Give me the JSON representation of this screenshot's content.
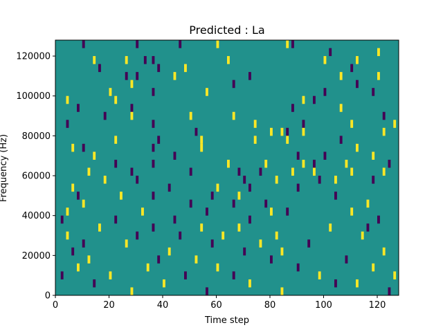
{
  "chart_data": {
    "type": "heatmap",
    "title": "Predicted : La",
    "xlabel": "Time step",
    "ylabel": "Frequency (Hz)",
    "xlim": [
      0,
      128
    ],
    "ylim": [
      0,
      128000
    ],
    "x_ticks": [
      0,
      20,
      40,
      60,
      80,
      100,
      120
    ],
    "y_ticks": [
      0,
      20000,
      40000,
      60000,
      80000,
      100000,
      120000
    ],
    "grid": false,
    "legend": "none",
    "colors": {
      "background": "#21918c",
      "positive": "#fde725",
      "negative": "#440154"
    },
    "cell_height_hz": 4000,
    "cells": [
      {
        "t": 10,
        "f": 124000,
        "v": "neg"
      },
      {
        "t": 30,
        "f": 124000,
        "v": "neg"
      },
      {
        "t": 46,
        "f": 124000,
        "v": "neg"
      },
      {
        "t": 60,
        "f": 124000,
        "v": "pos"
      },
      {
        "t": 86,
        "f": 124000,
        "v": "pos"
      },
      {
        "t": 88,
        "f": 124000,
        "v": "neg"
      },
      {
        "t": 102,
        "f": 120000,
        "v": "neg"
      },
      {
        "t": 120,
        "f": 120000,
        "v": "pos"
      },
      {
        "t": 14,
        "f": 116000,
        "v": "pos"
      },
      {
        "t": 26,
        "f": 116000,
        "v": "pos"
      },
      {
        "t": 33,
        "f": 116000,
        "v": "neg"
      },
      {
        "t": 36,
        "f": 116000,
        "v": "neg"
      },
      {
        "t": 64,
        "f": 116000,
        "v": "pos"
      },
      {
        "t": 100,
        "f": 116000,
        "v": "pos"
      },
      {
        "t": 112,
        "f": 116000,
        "v": "pos"
      },
      {
        "t": 16,
        "f": 112000,
        "v": "neg"
      },
      {
        "t": 38,
        "f": 112000,
        "v": "neg"
      },
      {
        "t": 48,
        "f": 112000,
        "v": "pos"
      },
      {
        "t": 110,
        "f": 112000,
        "v": "neg"
      },
      {
        "t": 26,
        "f": 108000,
        "v": "neg"
      },
      {
        "t": 30,
        "f": 108000,
        "v": "neg"
      },
      {
        "t": 44,
        "f": 108000,
        "v": "pos"
      },
      {
        "t": 72,
        "f": 108000,
        "v": "neg"
      },
      {
        "t": 106,
        "f": 108000,
        "v": "pos"
      },
      {
        "t": 120,
        "f": 108000,
        "v": "pos"
      },
      {
        "t": 28,
        "f": 104000,
        "v": "pos"
      },
      {
        "t": 66,
        "f": 104000,
        "v": "neg"
      },
      {
        "t": 112,
        "f": 104000,
        "v": "neg"
      },
      {
        "t": 20,
        "f": 100000,
        "v": "pos"
      },
      {
        "t": 36,
        "f": 100000,
        "v": "neg"
      },
      {
        "t": 56,
        "f": 100000,
        "v": "pos"
      },
      {
        "t": 100,
        "f": 100000,
        "v": "neg"
      },
      {
        "t": 118,
        "f": 100000,
        "v": "neg"
      },
      {
        "t": 4,
        "f": 96000,
        "v": "pos"
      },
      {
        "t": 22,
        "f": 96000,
        "v": "pos"
      },
      {
        "t": 92,
        "f": 96000,
        "v": "pos"
      },
      {
        "t": 96,
        "f": 96000,
        "v": "neg"
      },
      {
        "t": 8,
        "f": 92000,
        "v": "neg"
      },
      {
        "t": 28,
        "f": 92000,
        "v": "neg"
      },
      {
        "t": 88,
        "f": 92000,
        "v": "neg"
      },
      {
        "t": 106,
        "f": 92000,
        "v": "pos"
      },
      {
        "t": 18,
        "f": 88000,
        "v": "neg"
      },
      {
        "t": 28,
        "f": 88000,
        "v": "pos"
      },
      {
        "t": 50,
        "f": 88000,
        "v": "pos"
      },
      {
        "t": 66,
        "f": 88000,
        "v": "pos"
      },
      {
        "t": 122,
        "f": 88000,
        "v": "neg"
      },
      {
        "t": 4,
        "f": 84000,
        "v": "neg"
      },
      {
        "t": 36,
        "f": 84000,
        "v": "neg"
      },
      {
        "t": 74,
        "f": 84000,
        "v": "pos"
      },
      {
        "t": 92,
        "f": 84000,
        "v": "neg"
      },
      {
        "t": 110,
        "f": 84000,
        "v": "pos"
      },
      {
        "t": 126,
        "f": 84000,
        "v": "pos"
      },
      {
        "t": 52,
        "f": 80000,
        "v": "neg"
      },
      {
        "t": 80,
        "f": 80000,
        "v": "pos"
      },
      {
        "t": 84,
        "f": 80000,
        "v": "pos"
      },
      {
        "t": 86,
        "f": 80000,
        "v": "neg"
      },
      {
        "t": 92,
        "f": 80000,
        "v": "pos"
      },
      {
        "t": 122,
        "f": 80000,
        "v": "pos"
      },
      {
        "t": 22,
        "f": 76000,
        "v": "pos"
      },
      {
        "t": 38,
        "f": 76000,
        "v": "neg"
      },
      {
        "t": 54,
        "f": 76000,
        "v": "pos"
      },
      {
        "t": 74,
        "f": 76000,
        "v": "pos"
      },
      {
        "t": 86,
        "f": 76000,
        "v": "pos"
      },
      {
        "t": 106,
        "f": 76000,
        "v": "neg"
      },
      {
        "t": 6,
        "f": 72000,
        "v": "pos"
      },
      {
        "t": 10,
        "f": 72000,
        "v": "neg"
      },
      {
        "t": 36,
        "f": 72000,
        "v": "neg"
      },
      {
        "t": 54,
        "f": 72000,
        "v": "pos"
      },
      {
        "t": 112,
        "f": 72000,
        "v": "pos"
      },
      {
        "t": 14,
        "f": 68000,
        "v": "pos"
      },
      {
        "t": 44,
        "f": 68000,
        "v": "neg"
      },
      {
        "t": 90,
        "f": 68000,
        "v": "neg"
      },
      {
        "t": 100,
        "f": 68000,
        "v": "neg"
      },
      {
        "t": 118,
        "f": 68000,
        "v": "pos"
      },
      {
        "t": 22,
        "f": 64000,
        "v": "neg"
      },
      {
        "t": 36,
        "f": 64000,
        "v": "neg"
      },
      {
        "t": 64,
        "f": 64000,
        "v": "pos"
      },
      {
        "t": 78,
        "f": 64000,
        "v": "pos"
      },
      {
        "t": 92,
        "f": 64000,
        "v": "pos"
      },
      {
        "t": 96,
        "f": 64000,
        "v": "neg"
      },
      {
        "t": 108,
        "f": 64000,
        "v": "pos"
      },
      {
        "t": 124,
        "f": 64000,
        "v": "neg"
      },
      {
        "t": 12,
        "f": 60000,
        "v": "pos"
      },
      {
        "t": 28,
        "f": 60000,
        "v": "neg"
      },
      {
        "t": 50,
        "f": 60000,
        "v": "neg"
      },
      {
        "t": 68,
        "f": 60000,
        "v": "neg"
      },
      {
        "t": 76,
        "f": 60000,
        "v": "neg"
      },
      {
        "t": 88,
        "f": 60000,
        "v": "pos"
      },
      {
        "t": 96,
        "f": 60000,
        "v": "pos"
      },
      {
        "t": 110,
        "f": 60000,
        "v": "pos"
      },
      {
        "t": 122,
        "f": 60000,
        "v": "pos"
      },
      {
        "t": 18,
        "f": 56000,
        "v": "pos"
      },
      {
        "t": 30,
        "f": 56000,
        "v": "neg"
      },
      {
        "t": 70,
        "f": 56000,
        "v": "neg"
      },
      {
        "t": 82,
        "f": 56000,
        "v": "pos"
      },
      {
        "t": 98,
        "f": 56000,
        "v": "neg"
      },
      {
        "t": 104,
        "f": 56000,
        "v": "pos"
      },
      {
        "t": 118,
        "f": 56000,
        "v": "neg"
      },
      {
        "t": 6,
        "f": 52000,
        "v": "pos"
      },
      {
        "t": 42,
        "f": 52000,
        "v": "neg"
      },
      {
        "t": 60,
        "f": 52000,
        "v": "pos"
      },
      {
        "t": 72,
        "f": 52000,
        "v": "neg"
      },
      {
        "t": 90,
        "f": 52000,
        "v": "neg"
      },
      {
        "t": 8,
        "f": 48000,
        "v": "neg"
      },
      {
        "t": 24,
        "f": 48000,
        "v": "pos"
      },
      {
        "t": 36,
        "f": 48000,
        "v": "neg"
      },
      {
        "t": 58,
        "f": 48000,
        "v": "neg"
      },
      {
        "t": 68,
        "f": 48000,
        "v": "pos"
      },
      {
        "t": 104,
        "f": 48000,
        "v": "neg"
      },
      {
        "t": 10,
        "f": 44000,
        "v": "pos"
      },
      {
        "t": 50,
        "f": 44000,
        "v": "neg"
      },
      {
        "t": 66,
        "f": 44000,
        "v": "neg"
      },
      {
        "t": 78,
        "f": 44000,
        "v": "neg"
      },
      {
        "t": 116,
        "f": 44000,
        "v": "pos"
      },
      {
        "t": 4,
        "f": 40000,
        "v": "pos"
      },
      {
        "t": 32,
        "f": 40000,
        "v": "pos"
      },
      {
        "t": 56,
        "f": 40000,
        "v": "neg"
      },
      {
        "t": 80,
        "f": 40000,
        "v": "pos"
      },
      {
        "t": 86,
        "f": 40000,
        "v": "neg"
      },
      {
        "t": 110,
        "f": 40000,
        "v": "pos"
      },
      {
        "t": 2,
        "f": 36000,
        "v": "neg"
      },
      {
        "t": 22,
        "f": 36000,
        "v": "neg"
      },
      {
        "t": 44,
        "f": 36000,
        "v": "neg"
      },
      {
        "t": 72,
        "f": 36000,
        "v": "neg"
      },
      {
        "t": 120,
        "f": 36000,
        "v": "neg"
      },
      {
        "t": 16,
        "f": 32000,
        "v": "pos"
      },
      {
        "t": 36,
        "f": 32000,
        "v": "neg"
      },
      {
        "t": 54,
        "f": 32000,
        "v": "pos"
      },
      {
        "t": 68,
        "f": 32000,
        "v": "pos"
      },
      {
        "t": 102,
        "f": 32000,
        "v": "pos"
      },
      {
        "t": 116,
        "f": 32000,
        "v": "neg"
      },
      {
        "t": 4,
        "f": 28000,
        "v": "pos"
      },
      {
        "t": 30,
        "f": 28000,
        "v": "neg"
      },
      {
        "t": 46,
        "f": 28000,
        "v": "neg"
      },
      {
        "t": 62,
        "f": 28000,
        "v": "pos"
      },
      {
        "t": 82,
        "f": 28000,
        "v": "pos"
      },
      {
        "t": 114,
        "f": 28000,
        "v": "pos"
      },
      {
        "t": 10,
        "f": 24000,
        "v": "neg"
      },
      {
        "t": 26,
        "f": 24000,
        "v": "pos"
      },
      {
        "t": 58,
        "f": 24000,
        "v": "neg"
      },
      {
        "t": 76,
        "f": 24000,
        "v": "pos"
      },
      {
        "t": 94,
        "f": 24000,
        "v": "neg"
      },
      {
        "t": 6,
        "f": 20000,
        "v": "neg"
      },
      {
        "t": 42,
        "f": 20000,
        "v": "pos"
      },
      {
        "t": 70,
        "f": 20000,
        "v": "neg"
      },
      {
        "t": 84,
        "f": 20000,
        "v": "pos"
      },
      {
        "t": 122,
        "f": 20000,
        "v": "pos"
      },
      {
        "t": 12,
        "f": 16000,
        "v": "pos"
      },
      {
        "t": 38,
        "f": 16000,
        "v": "neg"
      },
      {
        "t": 52,
        "f": 16000,
        "v": "pos"
      },
      {
        "t": 80,
        "f": 16000,
        "v": "neg"
      },
      {
        "t": 108,
        "f": 16000,
        "v": "neg"
      },
      {
        "t": 8,
        "f": 12000,
        "v": "pos"
      },
      {
        "t": 34,
        "f": 12000,
        "v": "pos"
      },
      {
        "t": 60,
        "f": 12000,
        "v": "pos"
      },
      {
        "t": 90,
        "f": 12000,
        "v": "neg"
      },
      {
        "t": 118,
        "f": 12000,
        "v": "pos"
      },
      {
        "t": 2,
        "f": 8000,
        "v": "neg"
      },
      {
        "t": 20,
        "f": 8000,
        "v": "pos"
      },
      {
        "t": 48,
        "f": 8000,
        "v": "neg"
      },
      {
        "t": 66,
        "f": 8000,
        "v": "neg"
      },
      {
        "t": 98,
        "f": 8000,
        "v": "pos"
      },
      {
        "t": 126,
        "f": 8000,
        "v": "pos"
      },
      {
        "t": 14,
        "f": 4000,
        "v": "neg"
      },
      {
        "t": 40,
        "f": 4000,
        "v": "pos"
      },
      {
        "t": 72,
        "f": 4000,
        "v": "pos"
      },
      {
        "t": 104,
        "f": 4000,
        "v": "neg"
      },
      {
        "t": 112,
        "f": 4000,
        "v": "pos"
      },
      {
        "t": 28,
        "f": 0,
        "v": "pos"
      },
      {
        "t": 56,
        "f": 0,
        "v": "neg"
      },
      {
        "t": 84,
        "f": 0,
        "v": "pos"
      },
      {
        "t": 124,
        "f": 0,
        "v": "neg"
      }
    ]
  }
}
